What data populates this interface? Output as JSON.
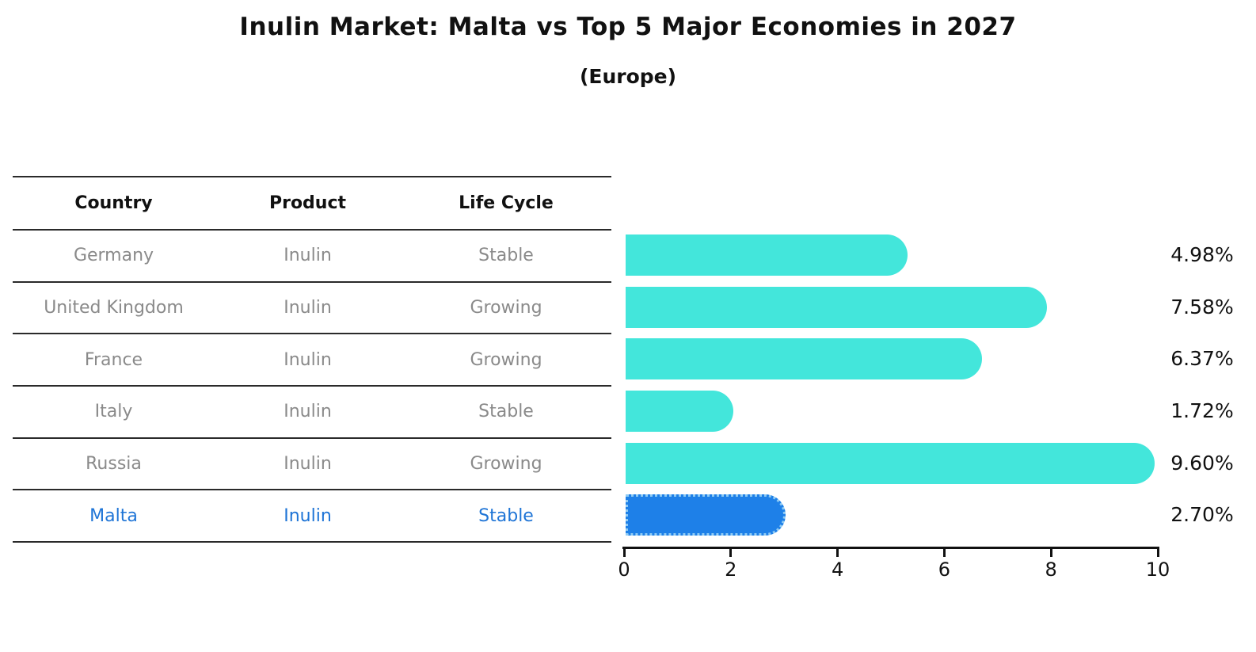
{
  "title": "Inulin Market: Malta vs Top 5 Major Economies in 2027",
  "subtitle": "(Europe)",
  "colors": {
    "bar_default": "#43E6DB",
    "bar_highlight": "#1E80E8",
    "highlight_border": "#8FCBF4",
    "highlight_text": "#1E74D6",
    "table_text": "#8a8a8a",
    "axis": "#111111"
  },
  "table": {
    "headers": [
      "Country",
      "Product",
      "Life Cycle"
    ],
    "rows": [
      {
        "country": "Germany",
        "product": "Inulin",
        "life_cycle": "Stable",
        "highlighted": false
      },
      {
        "country": "United Kingdom",
        "product": "Inulin",
        "life_cycle": "Growing",
        "highlighted": false
      },
      {
        "country": "France",
        "product": "Inulin",
        "life_cycle": "Growing",
        "highlighted": false
      },
      {
        "country": "Italy",
        "product": "Inulin",
        "life_cycle": "Stable",
        "highlighted": false
      },
      {
        "country": "Russia",
        "product": "Inulin",
        "life_cycle": "Growing",
        "highlighted": false
      },
      {
        "country": "Malta",
        "product": "Inulin",
        "life_cycle": "Stable",
        "highlighted": true
      }
    ]
  },
  "chart_data": {
    "type": "bar",
    "orientation": "horizontal",
    "title": "Inulin Market: Malta vs Top 5 Major Economies in 2027",
    "subtitle": "(Europe)",
    "categories": [
      "Germany",
      "United Kingdom",
      "France",
      "Italy",
      "Russia",
      "Malta"
    ],
    "values": [
      4.98,
      7.58,
      6.37,
      1.72,
      9.6,
      2.7
    ],
    "value_labels": [
      "4.98%",
      "7.58%",
      "6.37%",
      "1.72%",
      "9.60%",
      "2.70%"
    ],
    "xlim": [
      0,
      10
    ],
    "xticks": [
      "0",
      "2",
      "4",
      "6",
      "8",
      "10"
    ],
    "grid": false,
    "legend": false,
    "highlight_category": "Malta"
  }
}
